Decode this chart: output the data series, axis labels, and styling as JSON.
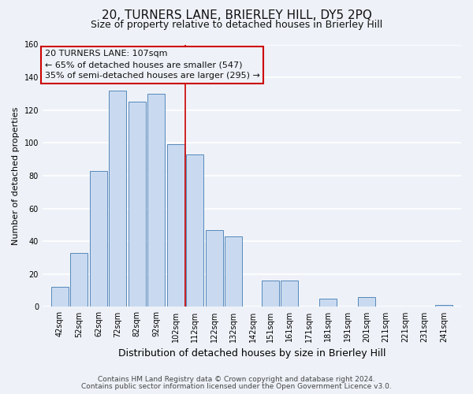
{
  "title": "20, TURNERS LANE, BRIERLEY HILL, DY5 2PQ",
  "subtitle": "Size of property relative to detached houses in Brierley Hill",
  "xlabel": "Distribution of detached houses by size in Brierley Hill",
  "ylabel": "Number of detached properties",
  "footnote1": "Contains HM Land Registry data © Crown copyright and database right 2024.",
  "footnote2": "Contains public sector information licensed under the Open Government Licence v3.0.",
  "bar_labels": [
    "42sqm",
    "52sqm",
    "62sqm",
    "72sqm",
    "82sqm",
    "92sqm",
    "102sqm",
    "112sqm",
    "122sqm",
    "132sqm",
    "142sqm",
    "151sqm",
    "161sqm",
    "171sqm",
    "181sqm",
    "191sqm",
    "201sqm",
    "211sqm",
    "221sqm",
    "231sqm",
    "241sqm"
  ],
  "bar_values": [
    12,
    33,
    83,
    132,
    125,
    130,
    99,
    93,
    47,
    43,
    0,
    16,
    16,
    0,
    5,
    0,
    6,
    0,
    0,
    0,
    1
  ],
  "bar_color": "#c9daf0",
  "bar_edge_color": "#5588bb",
  "background_color": "#eef2f8",
  "grid_color": "#ffffff",
  "annotation_box_edge_color": "#cc0000",
  "annotation_box_text_color": "#111111",
  "ann_line1": "20 TURNERS LANE: 107sqm",
  "ann_line2": "← 65% of detached houses are smaller (547)",
  "ann_line3": "35% of semi-detached houses are larger (295) →",
  "vline_color": "#cc0000",
  "vline_x_label": "102sqm",
  "ylim": [
    0,
    160
  ],
  "yticks": [
    0,
    20,
    40,
    60,
    80,
    100,
    120,
    140,
    160
  ],
  "title_fontsize": 11,
  "subtitle_fontsize": 9,
  "xlabel_fontsize": 9,
  "ylabel_fontsize": 8,
  "tick_fontsize": 7,
  "ann_fontsize": 8,
  "footnote_fontsize": 6.5
}
